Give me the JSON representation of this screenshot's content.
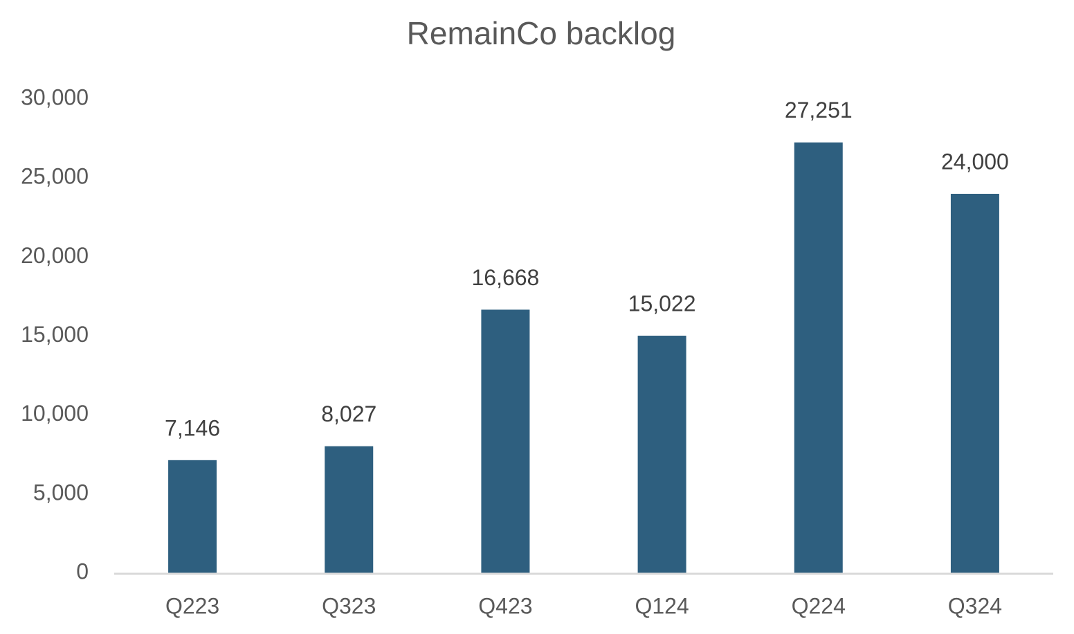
{
  "chart_data": {
    "type": "bar",
    "title": "RemainCo backlog",
    "categories": [
      "Q223",
      "Q323",
      "Q423",
      "Q124",
      "Q224",
      "Q324"
    ],
    "values": [
      7146,
      8027,
      16668,
      15022,
      27251,
      24000
    ],
    "value_labels": [
      "7,146",
      "8,027",
      "16,668",
      "15,022",
      "27,251",
      "24,000"
    ],
    "color": "#2e5f7f",
    "ylim": [
      0,
      30000
    ],
    "yticks": [
      0,
      {
        "value": 5000,
        "label": "5,000"
      },
      {
        "value": 10000,
        "label": "10,000"
      },
      {
        "value": 15000,
        "label": "15,000"
      },
      {
        "value": 20000,
        "label": "20,000"
      },
      {
        "value": 25000,
        "label": "25,000"
      },
      {
        "value": 30000,
        "label": "30,000"
      }
    ],
    "grid": false
  }
}
